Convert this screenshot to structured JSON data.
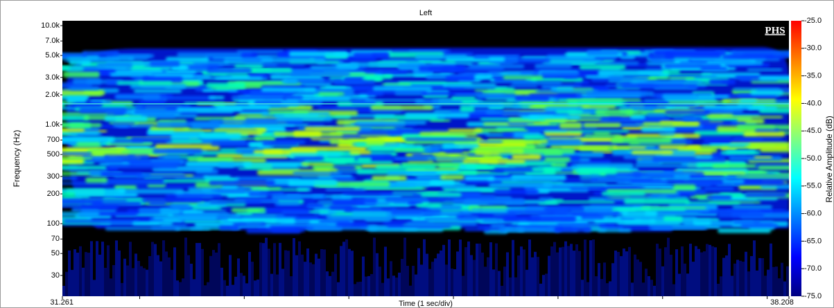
{
  "chart_data": {
    "type": "spectrogram",
    "title": "Left",
    "x_label": "Time (1 sec/div)",
    "y_label": "Frequency (Hz)",
    "annotation": "PHS",
    "xlim": [
      31.261,
      38.208
    ],
    "xticks": [
      31.261,
      38.208
    ],
    "xminorticks": [
      32,
      33,
      34,
      35,
      36,
      37,
      38
    ],
    "ylim": [
      18.5,
      11200
    ],
    "log_y": true,
    "yticks": [
      30,
      50,
      70,
      100,
      200,
      300,
      500,
      700,
      {
        "value": 1000,
        "label": "1.0k"
      },
      {
        "value": 2000,
        "label": "2.0k"
      },
      {
        "value": 3000,
        "label": "3.0k"
      },
      {
        "value": 5000,
        "label": "5.0k"
      },
      {
        "value": 7000,
        "label": "7.0k"
      },
      {
        "value": 10000,
        "label": "10.0k"
      }
    ],
    "colorbar": {
      "label": "Relative Amplitude (dB)",
      "lim": [
        -75,
        -25
      ],
      "ticks": [
        {
          "value": -25,
          "label": "-25.0"
        },
        {
          "value": -30,
          "label": "-30.0"
        },
        {
          "value": -35,
          "label": "-35.0"
        },
        {
          "value": -40,
          "label": "-40.0"
        },
        {
          "value": -45,
          "label": "-45.0"
        },
        {
          "value": -50,
          "label": "-50.0"
        },
        {
          "value": -55,
          "label": "-55.0"
        },
        {
          "value": -60,
          "label": "-60.0"
        },
        {
          "value": -65,
          "label": "-65.0"
        },
        {
          "value": -70,
          "label": "-70.0"
        },
        {
          "value": -75,
          "label": "-75.0"
        }
      ],
      "colors": [
        "#000080",
        "#0000ff",
        "#0080ff",
        "#00ffff",
        "#80ff80",
        "#ffff00",
        "#ff8000",
        "#ff0000"
      ]
    }
  }
}
